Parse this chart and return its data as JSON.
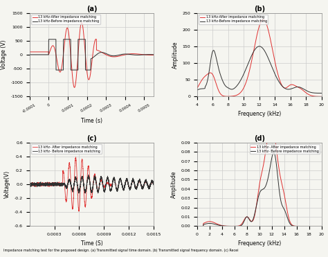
{
  "panel_a": {
    "title": "(a)",
    "xlabel": "Time (s)",
    "ylabel": "Voltage (V)",
    "xlim": [
      -0.0001,
      0.00055
    ],
    "ylim": [
      -1500,
      1500
    ],
    "xticks": [
      -0.0001,
      0.0,
      0.0001,
      0.0002,
      0.0003,
      0.0004,
      0.0005
    ],
    "yticks": [
      -1500,
      -1000,
      -500,
      0,
      500,
      1000,
      1500
    ],
    "legend": [
      "13 kHz-After impedance matching",
      "13 kHz-Before impedance matching"
    ],
    "color_after": "#e03030",
    "color_before": "#303030"
  },
  "panel_b": {
    "title": "(b)",
    "xlabel": "Frequency (kHz)",
    "ylabel": "Amplitude",
    "xlim": [
      4,
      20
    ],
    "ylim": [
      0,
      250
    ],
    "xticks": [
      4,
      6,
      8,
      10,
      12,
      14,
      16,
      18,
      20
    ],
    "yticks": [
      0,
      50,
      100,
      150,
      200,
      250
    ],
    "legend": [
      "13 kHz-After impedance matching",
      "13 kHz-Before impedance matching"
    ],
    "color_after": "#e03030",
    "color_before": "#303030"
  },
  "panel_c": {
    "title": "(c)",
    "xlabel": "Time (S)",
    "ylabel": "Voltage(V)",
    "xlim": [
      0.0,
      0.0015
    ],
    "ylim": [
      -0.6,
      0.6
    ],
    "xticks": [
      0.0003,
      0.0006,
      0.0009,
      0.0012,
      0.0015
    ],
    "yticks": [
      -0.6,
      -0.4,
      -0.2,
      0.0,
      0.2,
      0.4,
      0.6
    ],
    "legend": [
      "13 kHz- After impedance matching",
      "13 kHz- Before impedance matching"
    ],
    "color_after": "#e03030",
    "color_before": "#303030"
  },
  "panel_d": {
    "title": "(d)",
    "xlabel": "Frequency (kHz)",
    "ylabel": "Amplitude",
    "xlim": [
      0,
      20
    ],
    "ylim": [
      0,
      0.09
    ],
    "xticks": [
      0,
      2,
      4,
      6,
      8,
      10,
      12,
      14,
      16,
      18,
      20
    ],
    "yticks": [
      0.0,
      0.01,
      0.02,
      0.03,
      0.04,
      0.05,
      0.06,
      0.07,
      0.08,
      0.09
    ],
    "legend": [
      "13 kHz- After impedance matching",
      "13 kHz- Before impedance matching"
    ],
    "color_after": "#e03030",
    "color_before": "#303030"
  },
  "background_color": "#f5f5f0",
  "grid_color": "#cccccc",
  "figure_caption": "Impedance matching test for the proposed design. (a) Transmitted signal time domain. (b) Transmitted signal frequency domain. (c) Recei"
}
